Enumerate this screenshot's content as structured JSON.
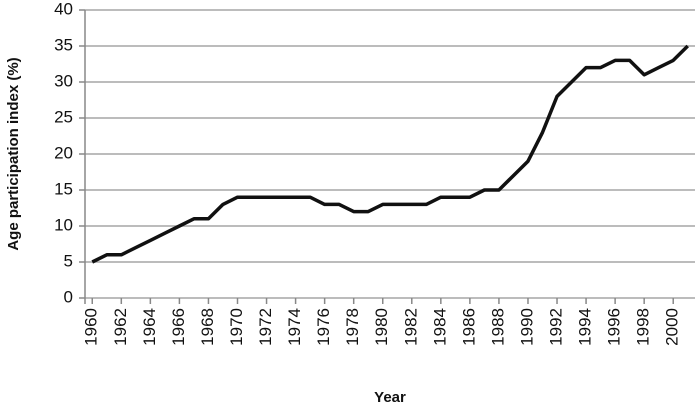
{
  "chart_data": {
    "type": "line",
    "x": [
      1960,
      1961,
      1962,
      1963,
      1964,
      1965,
      1966,
      1967,
      1968,
      1969,
      1970,
      1971,
      1972,
      1973,
      1974,
      1975,
      1976,
      1977,
      1978,
      1979,
      1980,
      1981,
      1982,
      1983,
      1984,
      1985,
      1986,
      1987,
      1988,
      1989,
      1990,
      1991,
      1992,
      1993,
      1994,
      1995,
      1996,
      1997,
      1998,
      1999,
      2000,
      2001
    ],
    "values": [
      5,
      6,
      6,
      7,
      8,
      9,
      10,
      11,
      11,
      13,
      14,
      14,
      14,
      14,
      14,
      14,
      13,
      13,
      12,
      12,
      13,
      13,
      13,
      13,
      14,
      14,
      14,
      15,
      15,
      17,
      19,
      23,
      28,
      30,
      32,
      32,
      33,
      33,
      31,
      32,
      33,
      35
    ],
    "color": "#111111",
    "x_label": "Year",
    "y_label": "Age participation index (%)",
    "xlim": [
      1959.5,
      2001.5
    ],
    "xticks": [
      1960,
      1962,
      1964,
      1966,
      1968,
      1970,
      1972,
      1974,
      1976,
      1978,
      1980,
      1982,
      1984,
      1986,
      1988,
      1990,
      1992,
      1994,
      1996,
      1998,
      2000
    ],
    "ylim": [
      0,
      40
    ],
    "yticks": [
      0,
      5,
      10,
      15,
      20,
      25,
      30,
      35,
      40
    ],
    "grid": true
  }
}
